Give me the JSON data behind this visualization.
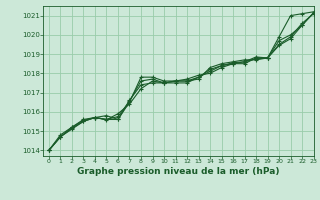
{
  "bg_color": "#cce8d8",
  "grid_color": "#99ccaa",
  "line_color": "#1a5c2a",
  "marker_color": "#1a5c2a",
  "xlabel": "Graphe pression niveau de la mer (hPa)",
  "xlabel_fontsize": 6.5,
  "xlim": [
    -0.5,
    23
  ],
  "ylim": [
    1013.7,
    1021.5
  ],
  "yticks": [
    1014,
    1015,
    1016,
    1017,
    1018,
    1019,
    1020,
    1021
  ],
  "xticks": [
    0,
    1,
    2,
    3,
    4,
    5,
    6,
    7,
    8,
    9,
    10,
    11,
    12,
    13,
    14,
    15,
    16,
    17,
    18,
    19,
    20,
    21,
    22,
    23
  ],
  "series": [
    [
      1014.0,
      1014.8,
      1015.2,
      1015.6,
      1015.7,
      1015.8,
      1015.6,
      1016.5,
      1017.8,
      1017.8,
      1017.6,
      1017.6,
      1017.6,
      1017.7,
      1018.3,
      1018.5,
      1018.6,
      1018.7,
      1018.7,
      1018.8,
      1019.9,
      1021.0,
      1021.1,
      1021.2
    ],
    [
      1014.0,
      1014.7,
      1015.1,
      1015.5,
      1015.7,
      1015.6,
      1015.6,
      1016.6,
      1017.4,
      1017.5,
      1017.5,
      1017.5,
      1017.5,
      1017.8,
      1018.2,
      1018.4,
      1018.5,
      1018.5,
      1018.8,
      1018.8,
      1019.5,
      1019.9,
      1020.6,
      1021.1
    ],
    [
      1014.0,
      1014.7,
      1015.15,
      1015.5,
      1015.7,
      1015.58,
      1015.9,
      1016.4,
      1017.2,
      1017.6,
      1017.5,
      1017.6,
      1017.7,
      1017.9,
      1018.0,
      1018.3,
      1018.5,
      1018.6,
      1018.85,
      1018.8,
      1019.45,
      1019.8,
      1020.5,
      1021.15
    ],
    [
      1014.0,
      1014.7,
      1015.2,
      1015.55,
      1015.7,
      1015.6,
      1015.75,
      1016.55,
      1017.6,
      1017.7,
      1017.5,
      1017.6,
      1017.6,
      1017.8,
      1018.1,
      1018.4,
      1018.55,
      1018.6,
      1018.75,
      1018.8,
      1019.7,
      1020.0,
      1020.5,
      1021.15
    ]
  ]
}
